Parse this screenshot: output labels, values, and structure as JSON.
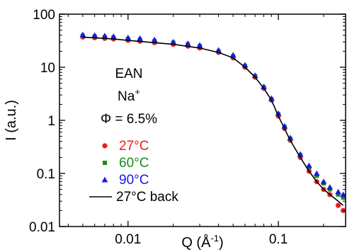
{
  "chart_data": {
    "type": "scatter",
    "xlabel": "Q (Å",
    "xlabel_sup": "-1",
    "xlabel_end": ")",
    "ylabel": "I (a.u.)",
    "x_scale": "log",
    "y_scale": "log",
    "xlim": [
      0.0035,
      0.28
    ],
    "ylim": [
      0.01,
      100
    ],
    "x_ticks": [
      {
        "value": 0.01,
        "label": "0.01"
      },
      {
        "value": 0.1,
        "label": "0.1"
      }
    ],
    "y_ticks": [
      {
        "value": 100,
        "label": "100"
      },
      {
        "value": 10,
        "label": "10"
      },
      {
        "value": 1,
        "label": "1"
      },
      {
        "value": 0.1,
        "label": "0.1"
      },
      {
        "value": 0.01,
        "label": "0.01"
      }
    ],
    "grid": false,
    "legend_position": "bottom-left",
    "annotations": {
      "line1": "EAN",
      "line2": "Na",
      "line2_sup": "+",
      "line3": "Φ = 6.5%"
    },
    "series": [
      {
        "name": "27°C",
        "marker": "circle",
        "color": "#ee1c1c",
        "x": [
          0.005,
          0.006,
          0.007,
          0.008,
          0.01,
          0.012,
          0.015,
          0.02,
          0.025,
          0.03,
          0.04,
          0.05,
          0.06,
          0.07,
          0.08,
          0.09,
          0.1,
          0.11,
          0.12,
          0.14,
          0.16,
          0.18,
          0.2,
          0.22,
          0.25,
          0.27
        ],
        "y": [
          37,
          36,
          35,
          34,
          32,
          31,
          29,
          27,
          25,
          23,
          19,
          15,
          10,
          6.5,
          4.0,
          2.4,
          1.2,
          0.7,
          0.42,
          0.2,
          0.11,
          0.07,
          0.05,
          0.04,
          0.025,
          0.02
        ]
      },
      {
        "name": "60°C",
        "marker": "square",
        "color": "#1a8a1a",
        "x": [
          0.005,
          0.006,
          0.007,
          0.008,
          0.01,
          0.012,
          0.015,
          0.02,
          0.025,
          0.03,
          0.04,
          0.05,
          0.06,
          0.07,
          0.08,
          0.09,
          0.1,
          0.11,
          0.12,
          0.14,
          0.16,
          0.18,
          0.2,
          0.22,
          0.25,
          0.27
        ],
        "y": [
          39,
          38,
          37,
          36,
          34,
          33,
          31,
          29,
          27,
          25,
          20,
          16,
          10.5,
          6.8,
          4.2,
          2.5,
          1.3,
          0.75,
          0.45,
          0.22,
          0.13,
          0.09,
          0.065,
          0.05,
          0.04,
          0.035
        ]
      },
      {
        "name": "90°C",
        "marker": "triangle",
        "color": "#1a1adf",
        "x": [
          0.005,
          0.006,
          0.007,
          0.008,
          0.01,
          0.012,
          0.015,
          0.02,
          0.025,
          0.03,
          0.04,
          0.05,
          0.06,
          0.07,
          0.08,
          0.09,
          0.1,
          0.11,
          0.12,
          0.14,
          0.16,
          0.18,
          0.2,
          0.22,
          0.25,
          0.27
        ],
        "y": [
          41,
          40,
          39,
          38,
          36,
          35,
          33,
          30,
          28,
          26,
          21,
          17,
          11,
          7,
          4.3,
          2.6,
          1.35,
          0.78,
          0.47,
          0.23,
          0.14,
          0.1,
          0.07,
          0.055,
          0.045,
          0.04
        ]
      },
      {
        "name": "27°C back",
        "marker": "line",
        "color": "#000000",
        "x": [
          0.005,
          0.008,
          0.01,
          0.015,
          0.02,
          0.03,
          0.04,
          0.05,
          0.06,
          0.07,
          0.08,
          0.09,
          0.1,
          0.12,
          0.14,
          0.16,
          0.18,
          0.2,
          0.22,
          0.25,
          0.27
        ],
        "y": [
          37,
          34,
          32,
          29,
          27,
          23,
          19,
          15,
          10,
          6.5,
          4.0,
          2.4,
          1.2,
          0.42,
          0.2,
          0.11,
          0.07,
          0.05,
          0.04,
          0.03,
          0.025
        ]
      }
    ]
  }
}
